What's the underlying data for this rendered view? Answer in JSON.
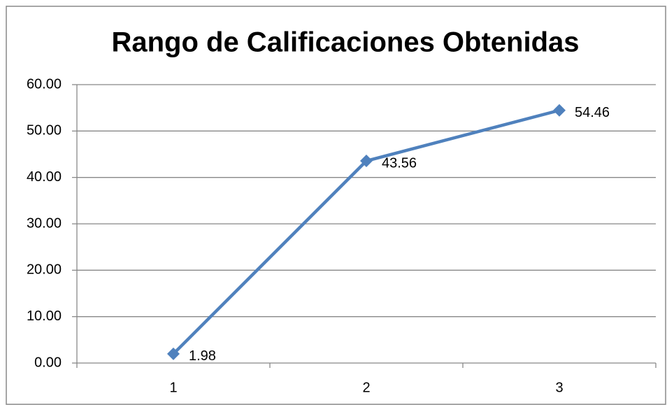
{
  "chart_data": {
    "type": "line",
    "title": "Rango de Calificaciones Obtenidas",
    "categories": [
      "1",
      "2",
      "3"
    ],
    "series": [
      {
        "name": null,
        "color": "#4f81bd",
        "values": [
          1.98,
          43.56,
          54.46
        ]
      }
    ],
    "ylim": [
      0,
      60
    ],
    "yticks": [
      {
        "value": 0,
        "label": "0.00"
      },
      {
        "value": 10,
        "label": "10.00"
      },
      {
        "value": 20,
        "label": "20.00"
      },
      {
        "value": 30,
        "label": "30.00"
      },
      {
        "value": 40,
        "label": "40.00"
      },
      {
        "value": 50,
        "label": "50.00"
      },
      {
        "value": 60,
        "label": "60.00"
      }
    ],
    "grid": true
  }
}
